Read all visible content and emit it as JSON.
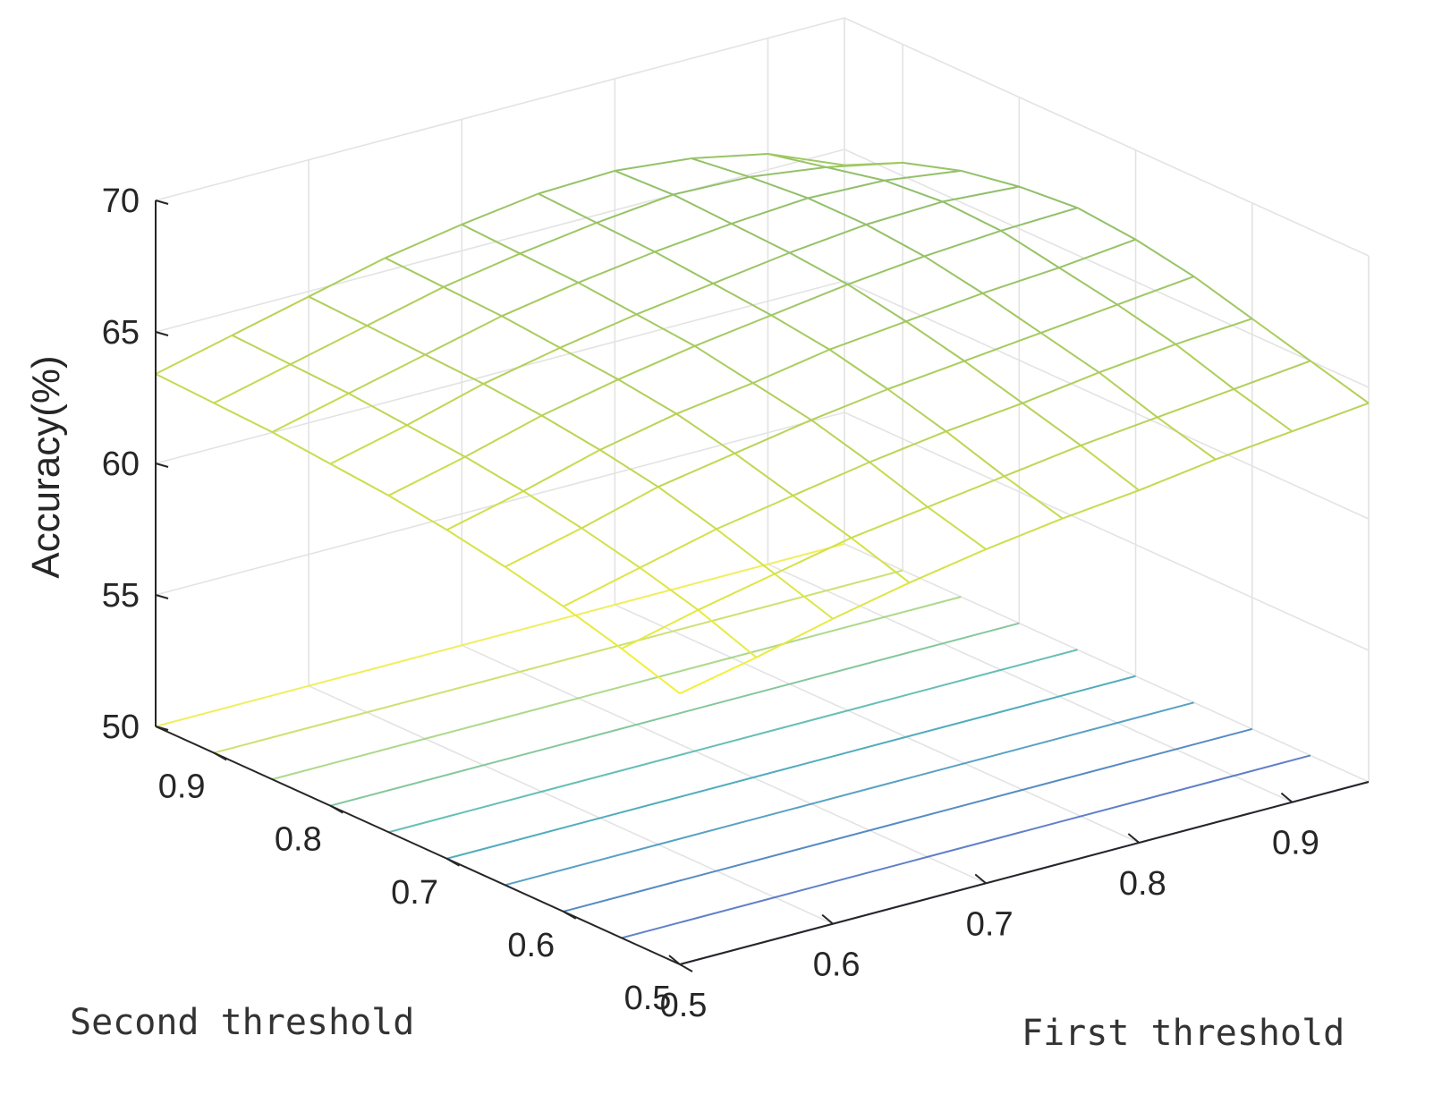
{
  "chart_data": {
    "type": "surface-3d",
    "xlabel": "First threshold",
    "ylabel": "Second threshold",
    "zlabel": "Accuracy(%)",
    "x_ticks": [
      "0.5",
      "0.6",
      "0.7",
      "0.8",
      "0.9"
    ],
    "y_ticks": [
      "0.5",
      "0.6",
      "0.7",
      "0.8",
      "0.9"
    ],
    "z_ticks": [
      "50",
      "55",
      "60",
      "65",
      "70"
    ],
    "xlim": [
      0.5,
      0.95
    ],
    "ylim": [
      0.5,
      0.95
    ],
    "zlim": [
      50,
      70
    ],
    "grid": true,
    "contour_floor": true,
    "x": [
      0.5,
      0.55,
      0.6,
      0.65,
      0.7,
      0.75,
      0.8,
      0.85,
      0.9,
      0.95
    ],
    "y": [
      0.5,
      0.55,
      0.6,
      0.65,
      0.7,
      0.75,
      0.8,
      0.85,
      0.9,
      0.95
    ],
    "z": [
      [
        60.3,
        60.9,
        61.6,
        62.2,
        62.7,
        63.1,
        63.4,
        63.8,
        64.1,
        64.4
      ],
      [
        61.0,
        61.7,
        62.3,
        62.9,
        63.3,
        63.7,
        64.1,
        64.4,
        64.7,
        65.0
      ],
      [
        61.6,
        62.3,
        63.0,
        63.5,
        64.0,
        64.4,
        64.7,
        65.1,
        65.4,
        65.6
      ],
      [
        62.1,
        62.8,
        63.6,
        64.1,
        64.6,
        65.0,
        65.3,
        65.6,
        65.9,
        66.2
      ],
      [
        62.5,
        63.2,
        64.0,
        64.6,
        65.0,
        65.5,
        65.8,
        66.1,
        66.3,
        66.6
      ],
      [
        62.8,
        63.5,
        64.3,
        64.9,
        65.4,
        65.8,
        66.2,
        66.5,
        66.7,
        66.8
      ],
      [
        63.0,
        63.7,
        64.5,
        65.1,
        65.6,
        66.0,
        66.4,
        66.7,
        66.8,
        66.6
      ],
      [
        63.2,
        63.9,
        64.6,
        65.3,
        65.8,
        66.2,
        66.5,
        66.7,
        66.6,
        66.2
      ],
      [
        63.3,
        64.0,
        64.7,
        65.4,
        65.9,
        66.3,
        66.6,
        66.5,
        66.1,
        65.5
      ],
      [
        63.4,
        64.1,
        64.8,
        65.5,
        66.0,
        66.4,
        66.5,
        66.2,
        65.6,
        64.4
      ]
    ],
    "colors": {
      "low": "#3b4cc0",
      "mid": "#2aa7b0",
      "high": "#f2f03a",
      "grid": "#e3e3e3",
      "axis": "#262626"
    }
  }
}
